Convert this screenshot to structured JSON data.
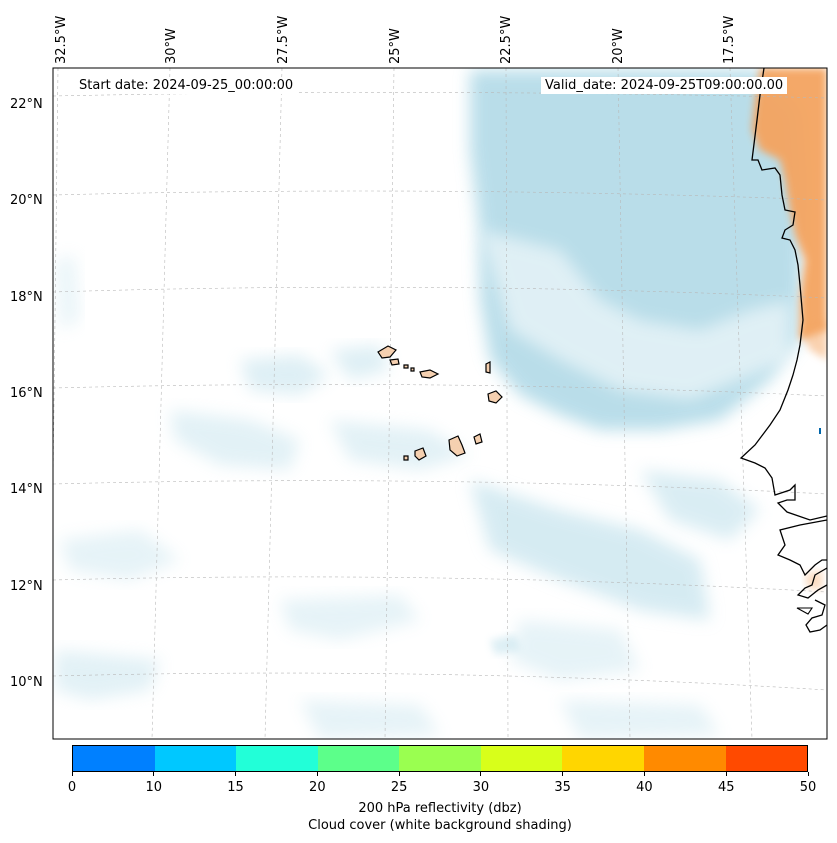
{
  "map": {
    "start_date_text": "Start date: 2024-09-25_00:00:00",
    "valid_date_text": "Valid_date: 2024-09-25T09:00:00.00",
    "lon_labels": [
      "32.5°W",
      "30°W",
      "27.5°W",
      "25°W",
      "22.5°W",
      "20°W",
      "17.5°W"
    ],
    "lat_labels": [
      "22°N",
      "20°N",
      "18°N",
      "16°N",
      "14°N",
      "12°N",
      "10°N"
    ],
    "cloud_color": "#add8e6",
    "land_color": "#f4a460",
    "island_fill": "#f5d0b0"
  },
  "colorbar": {
    "ticks": [
      "0",
      "10",
      "15",
      "20",
      "25",
      "30",
      "35",
      "40",
      "45",
      "50"
    ],
    "colors": [
      "#0080ff",
      "#00c8ff",
      "#22ffd8",
      "#5cff8a",
      "#9aff50",
      "#d8ff1a",
      "#ffd600",
      "#ff8a00",
      "#ff4a00"
    ],
    "label_line1": "200 hPa reflectivity (dbz)",
    "label_line2": "Cloud cover (white background shading)"
  }
}
